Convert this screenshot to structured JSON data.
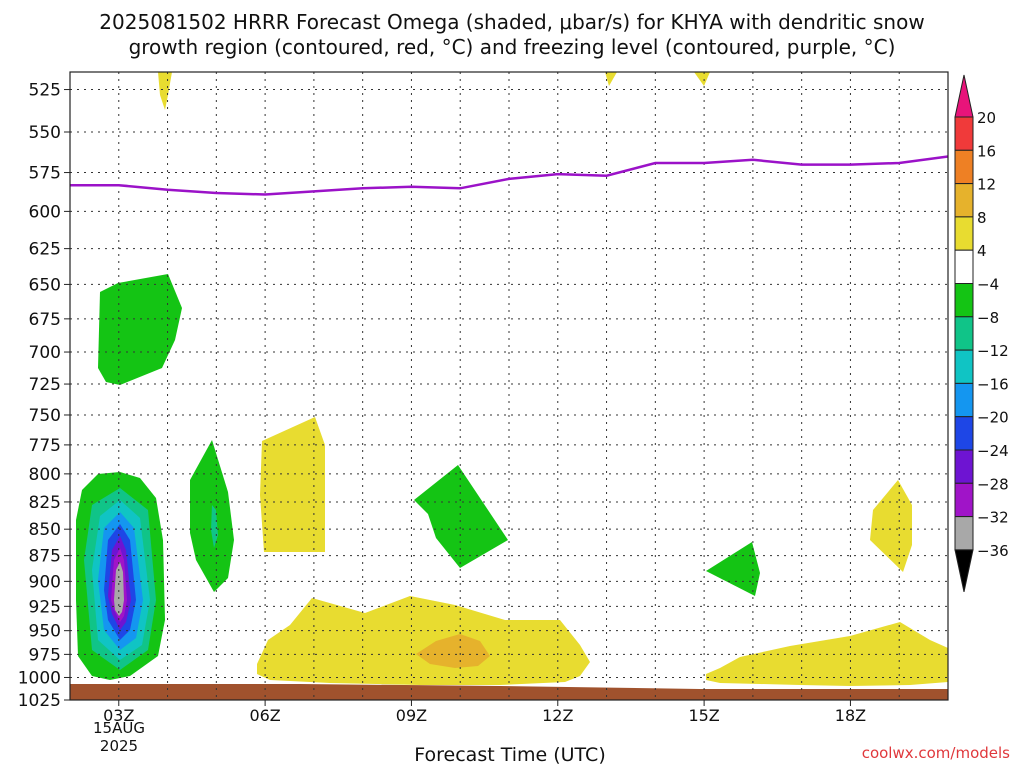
{
  "chart_data": {
    "type": "heatmap",
    "title_line1": "2025081502 HRRR Forecast Omega (shaded, μbar/s) for KHYA with dendritic snow",
    "title_line2": "growth region (contoured, red, °C) and freezing level (contoured, purple, °C)",
    "xlabel": "Forecast Time (UTC)",
    "ylabel": "",
    "x_ticks": [
      "03Z",
      "06Z",
      "09Z",
      "12Z",
      "15Z",
      "18Z"
    ],
    "x_tick_hours": [
      3,
      6,
      9,
      12,
      15,
      18
    ],
    "first_tick_date": "15AUG",
    "first_tick_year": "2025",
    "xlim": [
      2,
      20
    ],
    "y_ticks": [
      525,
      550,
      575,
      600,
      625,
      650,
      675,
      700,
      725,
      750,
      775,
      800,
      825,
      850,
      875,
      900,
      925,
      950,
      975,
      1000,
      1025
    ],
    "ylim": [
      1025,
      515
    ],
    "y_scale": "log-pressure",
    "grid": true,
    "colorbar": {
      "labels": [
        "20",
        "16",
        "12",
        "8",
        "4",
        "−4",
        "−8",
        "−12",
        "−16",
        "−20",
        "−24",
        "−28",
        "−32",
        "−36"
      ],
      "colors": [
        "#e8147a",
        "#f03a3a",
        "#ee8024",
        "#e6b22c",
        "#e8dc30",
        "#ffffff",
        "#14c414",
        "#10c488",
        "#10c4c4",
        "#1496f0",
        "#1e46e6",
        "#6e14d2",
        "#a014c8",
        "#a8a8a8",
        "#000000"
      ]
    },
    "freezing_level": {
      "color": "#9b12c8",
      "hours": [
        2,
        3,
        4,
        5,
        6,
        7,
        8,
        9,
        10,
        11,
        12,
        13,
        14,
        15,
        16,
        17,
        18,
        19,
        20
      ],
      "pressure_hpa": [
        583,
        583,
        586,
        588,
        589,
        587,
        585,
        584,
        585,
        579,
        576,
        577,
        569,
        569,
        567,
        570,
        570,
        569,
        565
      ]
    },
    "terrain_color": "#a0522d",
    "credit": "coolwx.com/models"
  }
}
